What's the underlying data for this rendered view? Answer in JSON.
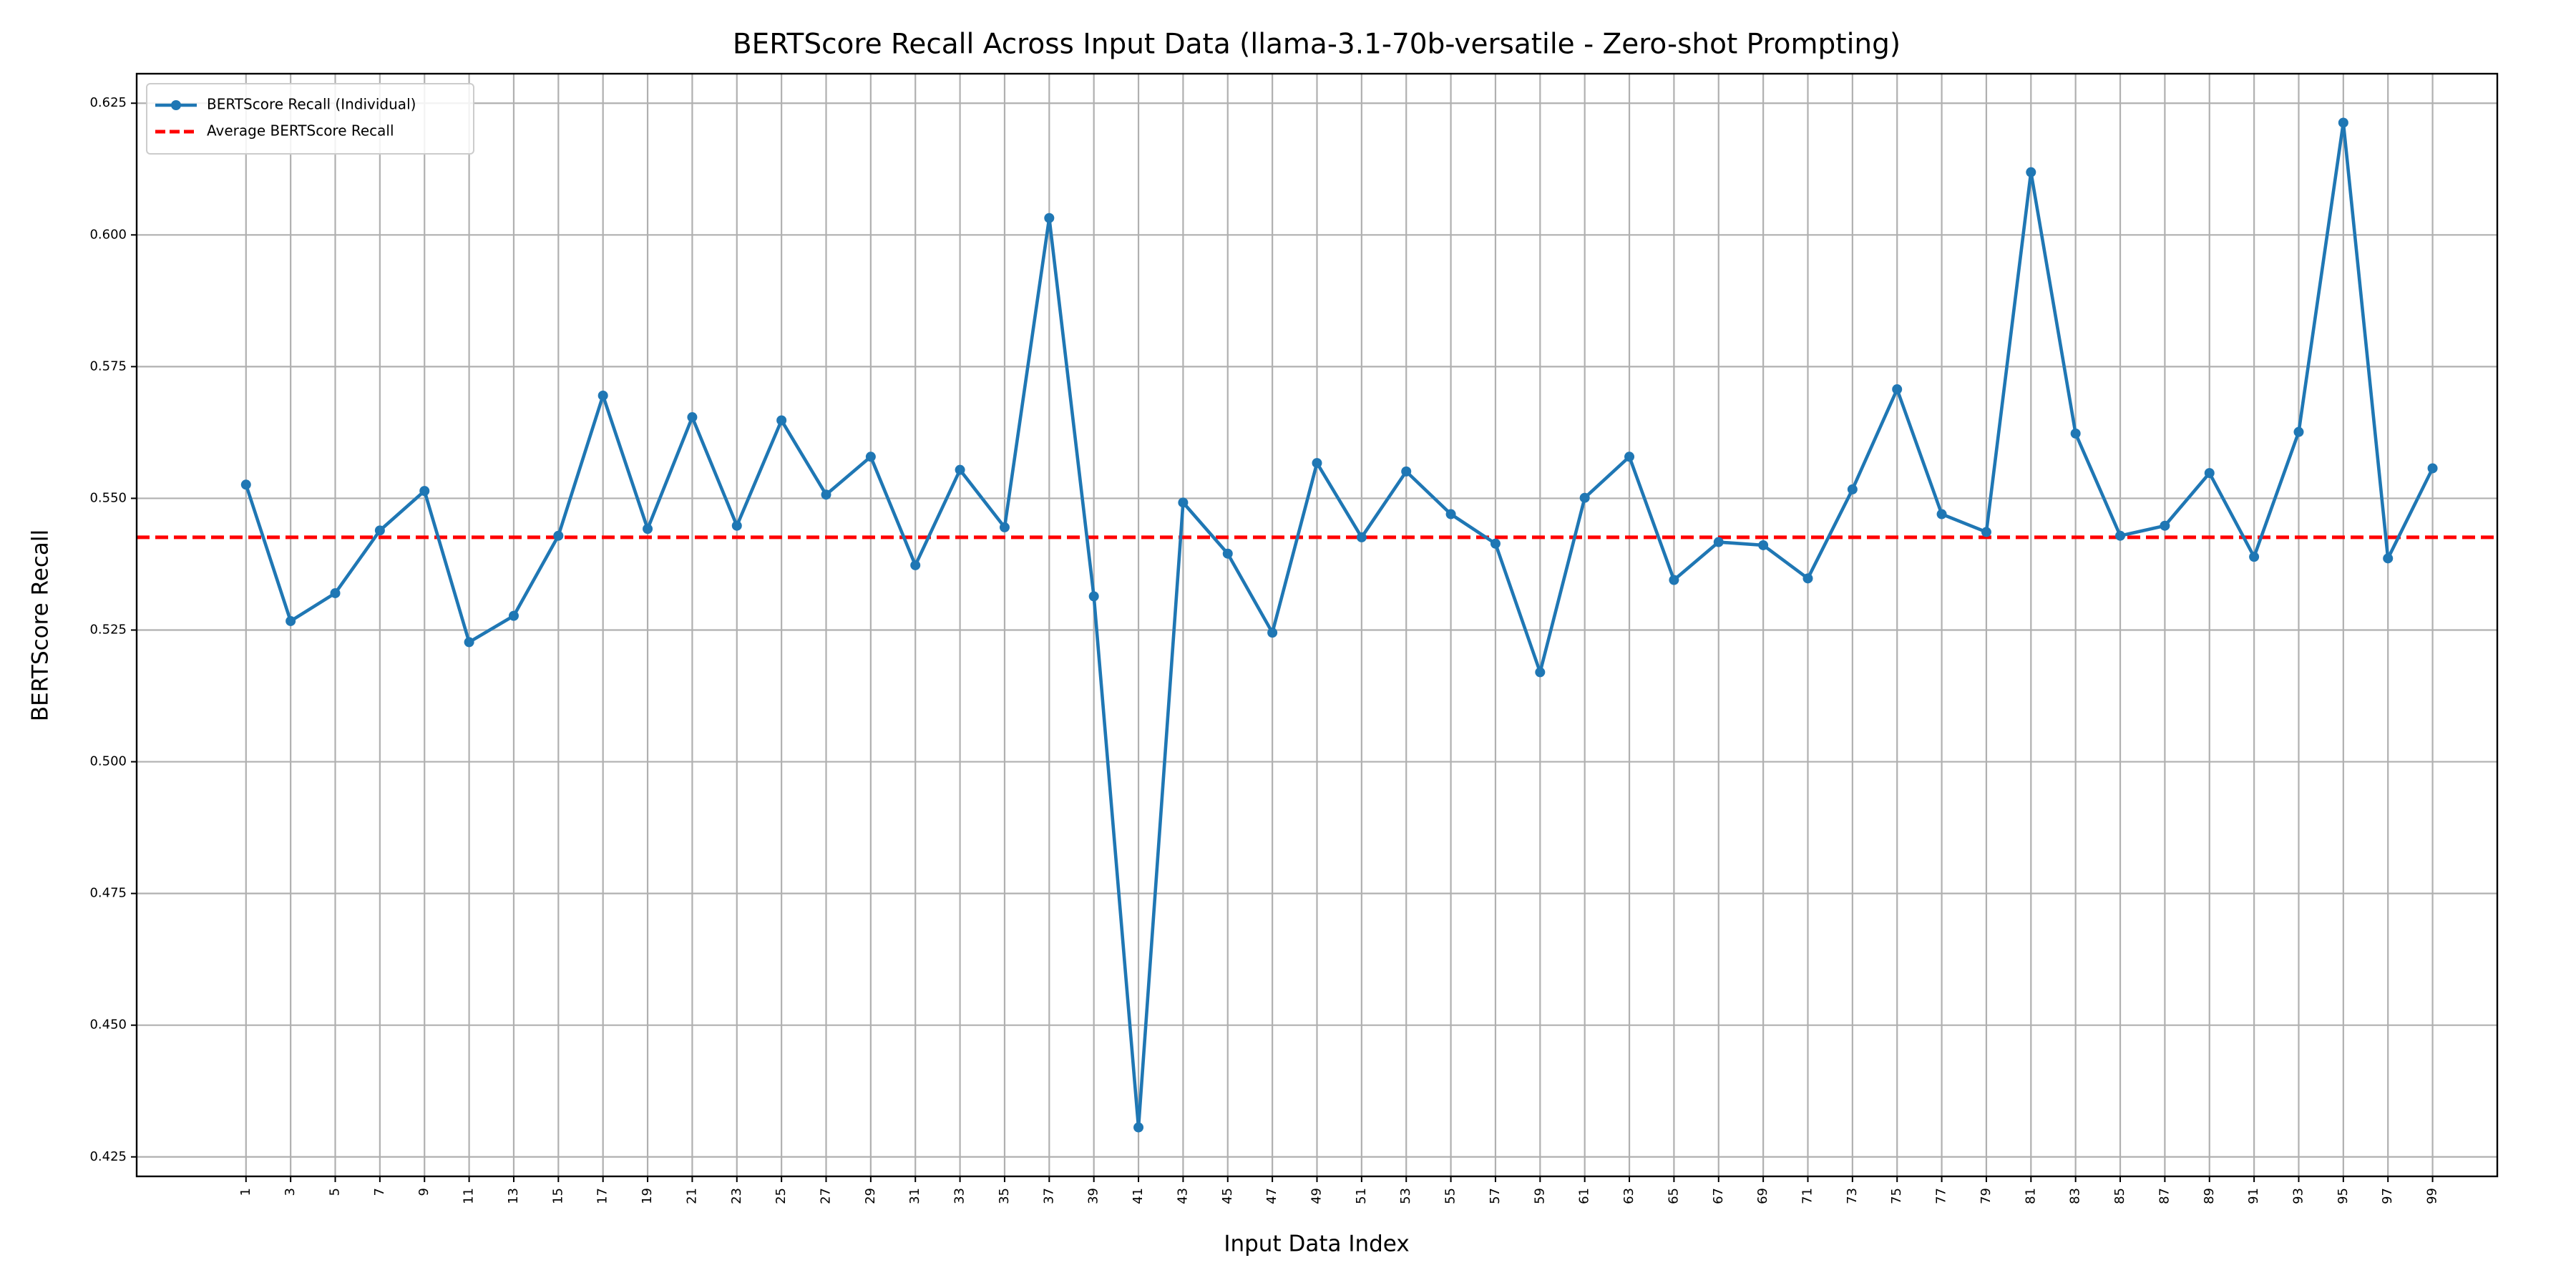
{
  "chart_data": {
    "type": "line",
    "title": "BERTScore Recall Across Input Data (llama-3.1-70b-versatile - Zero-shot Prompting)",
    "xlabel": "Input Data Index",
    "ylabel": "BERTScore Recall",
    "x": [
      1,
      3,
      5,
      7,
      9,
      11,
      13,
      15,
      17,
      19,
      21,
      23,
      25,
      27,
      29,
      31,
      33,
      35,
      37,
      39,
      41,
      43,
      45,
      47,
      49,
      51,
      53,
      55,
      57,
      59,
      61,
      63,
      65,
      67,
      69,
      71,
      73,
      75,
      77,
      79,
      81,
      83,
      85,
      87,
      89,
      91,
      93,
      95,
      97,
      99
    ],
    "series": [
      {
        "name": "BERTScore Recall (Individual)",
        "color": "#1f77b4",
        "values": [
          0.5526,
          0.5267,
          0.532,
          0.5439,
          0.5514,
          0.5227,
          0.5277,
          0.5429,
          0.5695,
          0.5442,
          0.5654,
          0.5448,
          0.5648,
          0.5507,
          0.5579,
          0.5373,
          0.5554,
          0.5445,
          0.6032,
          0.5314,
          0.4306,
          0.5492,
          0.5395,
          0.5245,
          0.5567,
          0.5426,
          0.5551,
          0.547,
          0.5414,
          0.517,
          0.5501,
          0.5579,
          0.5345,
          0.5417,
          0.5411,
          0.5348,
          0.5517,
          0.5707,
          0.547,
          0.5436,
          0.6119,
          0.5623,
          0.5429,
          0.5448,
          0.5548,
          0.5389,
          0.5626,
          0.6213,
          0.5386,
          0.5557
        ]
      }
    ],
    "reference_lines": [
      {
        "name": "Average BERTScore Recall",
        "value": 0.5426,
        "color": "#ff0000",
        "style": "dashed"
      }
    ],
    "xlim": [
      -3.9,
      101.9
    ],
    "xticks": [
      1,
      3,
      5,
      7,
      9,
      11,
      13,
      15,
      17,
      19,
      21,
      23,
      25,
      27,
      29,
      31,
      33,
      35,
      37,
      39,
      41,
      43,
      45,
      47,
      49,
      51,
      53,
      55,
      57,
      59,
      61,
      63,
      65,
      67,
      69,
      71,
      73,
      75,
      77,
      79,
      81,
      83,
      85,
      87,
      89,
      91,
      93,
      95,
      97,
      99
    ],
    "ylim": [
      0.4213,
      0.6306
    ],
    "yticks": [
      0.425,
      {
        "value": 0.45,
        "label": "0.450"
      },
      0.475,
      {
        "value": 0.5,
        "label": "0.500"
      },
      0.525,
      {
        "value": 0.55,
        "label": "0.550"
      },
      0.575,
      {
        "value": 0.6,
        "label": "0.600"
      },
      0.625
    ],
    "grid": true,
    "legend": "upper left"
  }
}
